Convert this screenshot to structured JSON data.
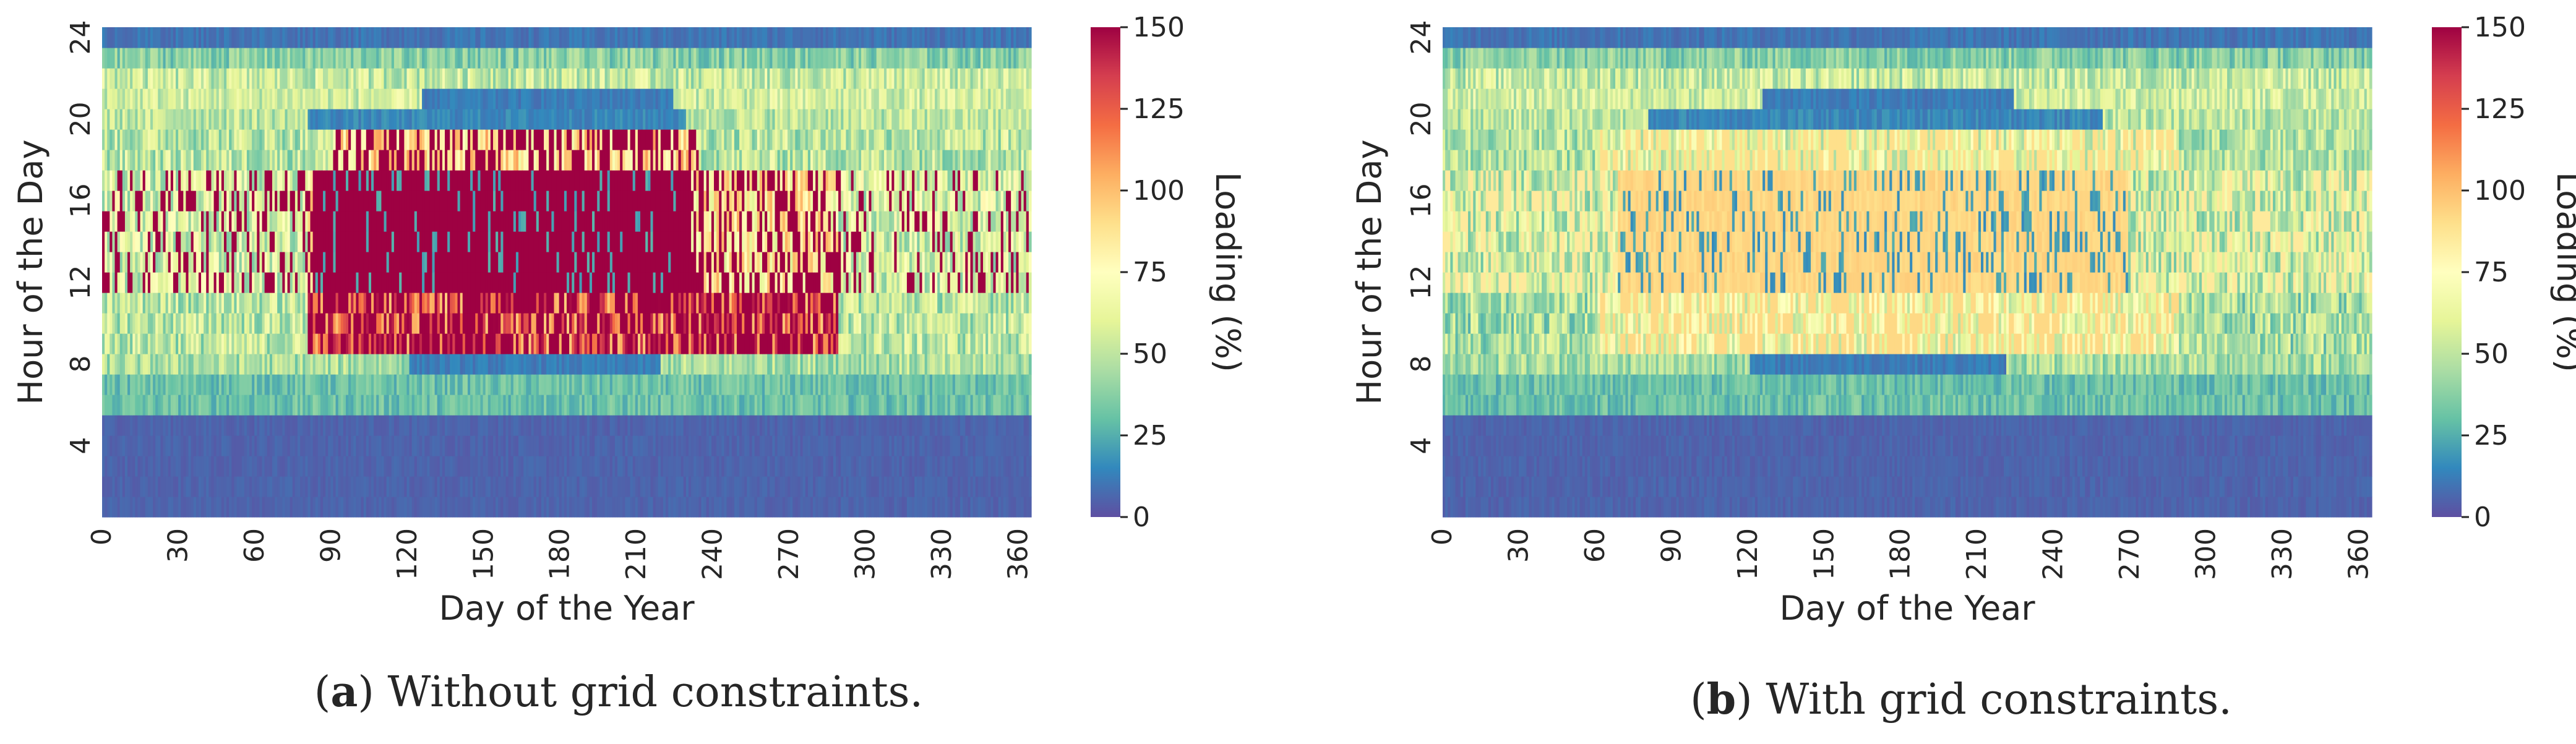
{
  "chart_data": [
    {
      "type": "heatmap",
      "panel_id": "a",
      "caption_letter": "a",
      "caption_text": ") Without grid constraints.",
      "caption_open": "(",
      "xlabel": "Day of the Year",
      "ylabel": "Hour of the Day",
      "colorbar_label": "Loading (%)",
      "x_range": [
        0,
        365
      ],
      "y_range": [
        0,
        24
      ],
      "x_ticks": [
        "0",
        "30",
        "60",
        "90",
        "120",
        "150",
        "180",
        "210",
        "240",
        "270",
        "300",
        "330",
        "360"
      ],
      "y_ticks": [
        "4",
        "8",
        "12",
        "16",
        "20",
        "24"
      ],
      "colorbar_ticks": [
        "0",
        "25",
        "50",
        "75",
        "100",
        "125",
        "150"
      ],
      "color_range": [
        0,
        150
      ],
      "colormap": "Spectral_r",
      "hour_band_values_percent": [
        {
          "hours": "0-5",
          "value": 5
        },
        {
          "hours": "5-7",
          "value": 30
        },
        {
          "hours": "7-11",
          "value": 70
        },
        {
          "hours": "11-17 (days 80-230)",
          "value": 150
        },
        {
          "hours": "17-19",
          "value": 60
        },
        {
          "hours": "19-22",
          "value": 45
        },
        {
          "hours": "22-24",
          "value": 30
        },
        {
          "hours": "24",
          "value": 10
        }
      ],
      "peak_value_percent": 150
    },
    {
      "type": "heatmap",
      "panel_id": "b",
      "caption_letter": "b",
      "caption_text": ") With grid constraints.",
      "caption_open": "(",
      "xlabel": "Day of the Year",
      "ylabel": "Hour of the Day",
      "colorbar_label": "Loading (%)",
      "x_range": [
        0,
        365
      ],
      "y_range": [
        0,
        24
      ],
      "x_ticks": [
        "0",
        "30",
        "60",
        "90",
        "120",
        "150",
        "180",
        "210",
        "240",
        "270",
        "300",
        "330",
        "360"
      ],
      "y_ticks": [
        "4",
        "8",
        "12",
        "16",
        "20",
        "24"
      ],
      "colorbar_ticks": [
        "0",
        "25",
        "50",
        "75",
        "100",
        "125",
        "150"
      ],
      "color_range": [
        0,
        150
      ],
      "colormap": "Spectral_r",
      "hour_band_values_percent": [
        {
          "hours": "0-5",
          "value": 5
        },
        {
          "hours": "5-7",
          "value": 30
        },
        {
          "hours": "7-11",
          "value": 60
        },
        {
          "hours": "11-17 (days 60-270)",
          "value": 92
        },
        {
          "hours": "17-19",
          "value": 50
        },
        {
          "hours": "19-22",
          "value": 40
        },
        {
          "hours": "22-24",
          "value": 30
        },
        {
          "hours": "24",
          "value": 10
        }
      ],
      "peak_value_percent": 100
    }
  ]
}
